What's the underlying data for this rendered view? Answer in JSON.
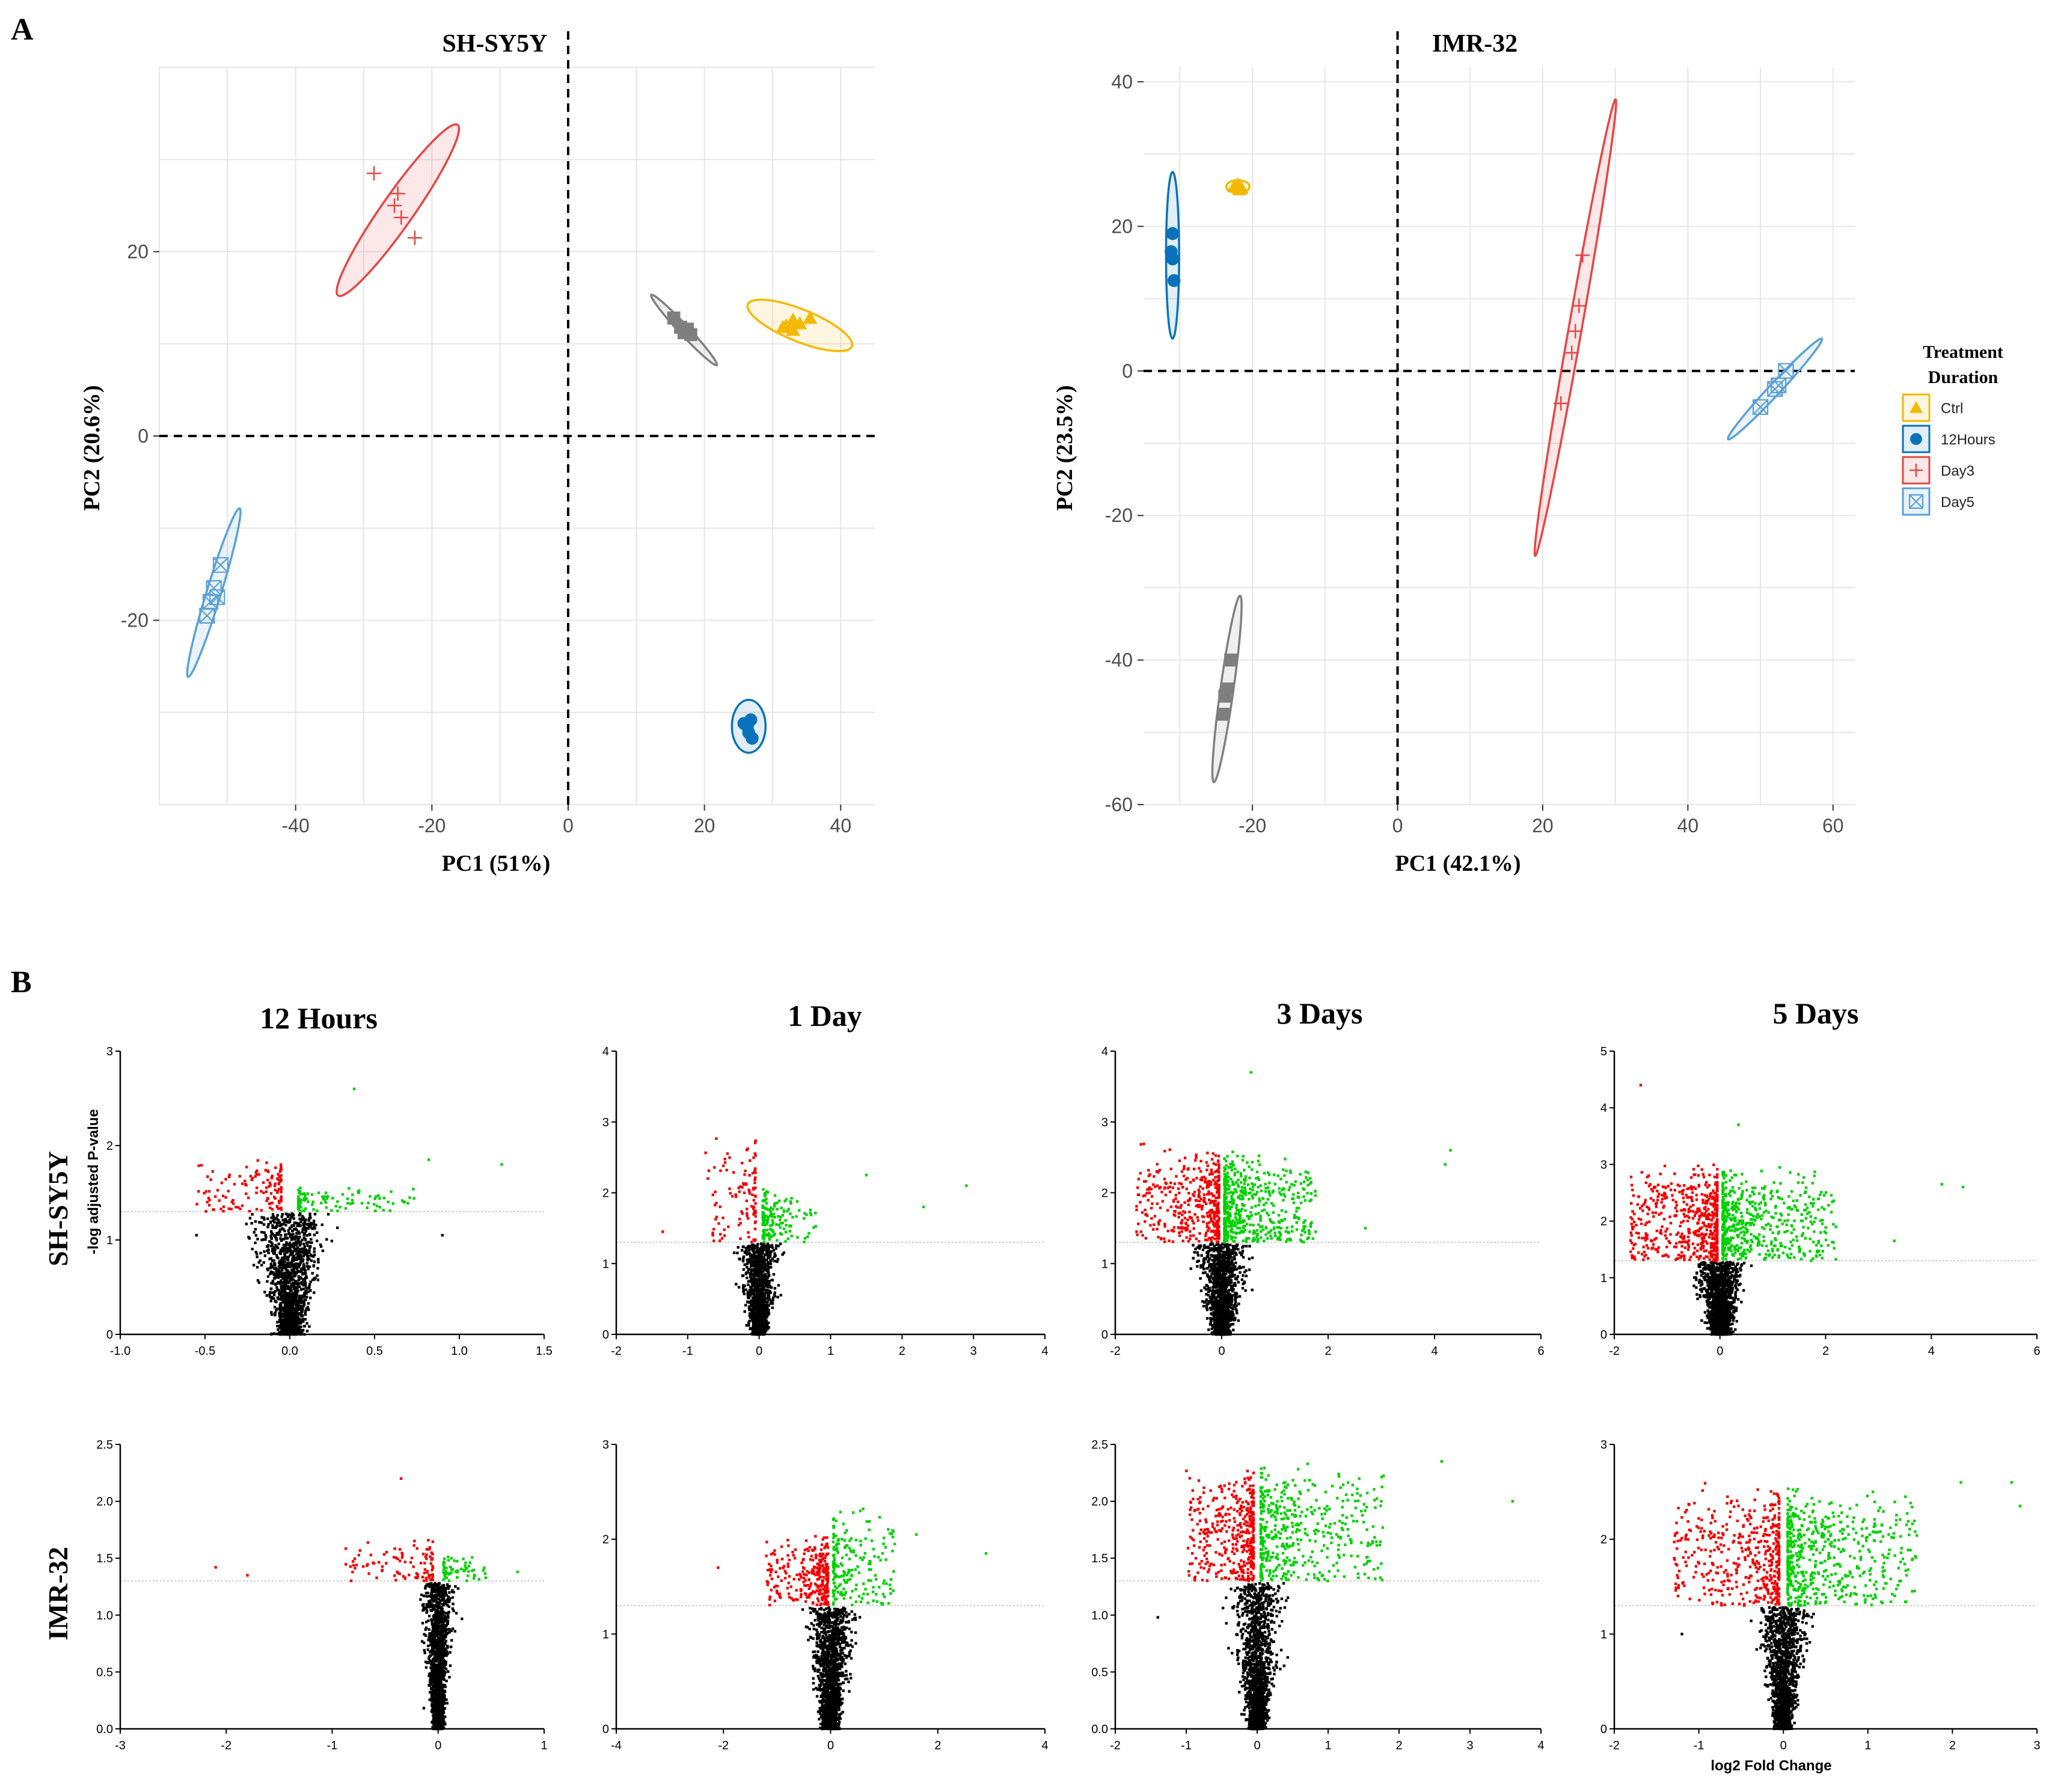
{
  "figure": {
    "panel_a_label": "A",
    "panel_b_label": "B"
  },
  "legend": {
    "title_line1": "Treatment",
    "title_line2": "Duration",
    "items": [
      {
        "label": "Ctrl",
        "color": "#F5B800",
        "shape": "triangle"
      },
      {
        "label": "12Hours",
        "color": "#0A72BA",
        "shape": "circle"
      },
      {
        "label": "Day3",
        "color": "#E84545",
        "shape": "plus"
      },
      {
        "label": "Day5",
        "color": "#5AA0D8",
        "shape": "boxx"
      }
    ]
  },
  "colors": {
    "up": "#00D100",
    "down": "#F20000",
    "ns": "#000000",
    "grid": "#E6E6E6",
    "unlabeled_group": "#7F7F7F"
  },
  "chart_data": [
    {
      "type": "scatter",
      "id": "pca-shsy5y",
      "title": "SH-SY5Y",
      "xlabel": "PC1 (51%)",
      "ylabel": "PC2 (20.6%)",
      "xlim": [
        -60,
        45
      ],
      "ylim": [
        -40,
        40
      ],
      "xticks": [
        -40,
        -20,
        0,
        20,
        40
      ],
      "yticks": [
        -20,
        0,
        20
      ],
      "groups": [
        {
          "name": "Ctrl",
          "ellipse": {
            "cx": 34,
            "cy": 12,
            "rx": 7,
            "ry": 2,
            "angle": 22
          },
          "points": [
            [
              32,
              12
            ],
            [
              33,
              11.5
            ],
            [
              34,
              12.2
            ],
            [
              35.5,
              12.8
            ],
            [
              31.5,
              11.8
            ],
            [
              33,
              12.6
            ]
          ]
        },
        {
          "name": "12Hours",
          "ellipse": {
            "cx": 26.5,
            "cy": -31.5,
            "rx": 2.1,
            "ry": 3.3,
            "angle": 0
          },
          "points": [
            [
              26.3,
              -31.5
            ],
            [
              26.5,
              -32.2
            ],
            [
              26.8,
              -30.8
            ],
            [
              27,
              -32.8
            ],
            [
              25.8,
              -31.2
            ]
          ]
        },
        {
          "name": "Day3",
          "ellipse": {
            "cx": -25,
            "cy": 24.5,
            "rx": 13,
            "ry": 2,
            "angle": -55
          },
          "points": [
            [
              -28.5,
              28.5
            ],
            [
              -25,
              26.3
            ],
            [
              -25.5,
              25
            ],
            [
              -24.5,
              23.7
            ],
            [
              -22.5,
              21.5
            ]
          ]
        },
        {
          "name": "Day5",
          "ellipse": {
            "cx": -52,
            "cy": -17,
            "rx": 11,
            "ry": 0.9,
            "angle": -73
          },
          "points": [
            [
              -53,
              -19.5
            ],
            [
              -52.5,
              -18
            ],
            [
              -52,
              -16.5
            ],
            [
              -51.5,
              -17.5
            ],
            [
              -51,
              -14
            ]
          ]
        },
        {
          "name": "unlabeled",
          "ellipse": {
            "cx": 17,
            "cy": 11.5,
            "rx": 6,
            "ry": 0.6,
            "angle": 47
          },
          "points": [
            [
              16.5,
              11.8
            ],
            [
              17,
              11.2
            ],
            [
              17.5,
              11.6
            ],
            [
              18,
              11.0
            ],
            [
              15.5,
              12.8
            ]
          ]
        }
      ],
      "reference_lines": {
        "x": 0,
        "y": 0
      }
    },
    {
      "type": "scatter",
      "id": "pca-imr32",
      "title": "IMR-32",
      "xlabel": "PC1 (42.1%)",
      "ylabel": "PC2 (23.5%)",
      "xlim": [
        -35,
        63
      ],
      "ylim": [
        -60,
        42
      ],
      "xticks": [
        -20,
        0,
        20,
        40,
        60
      ],
      "yticks": [
        -60,
        -40,
        -20,
        0,
        20,
        40
      ],
      "groups": [
        {
          "name": "Ctrl",
          "ellipse": {
            "cx": -22,
            "cy": 25.5,
            "rx": 1.6,
            "ry": 0.9,
            "angle": 0
          },
          "points": [
            [
              -22,
              25.8
            ],
            [
              -21.5,
              25.3
            ],
            [
              -22.5,
              25.5
            ],
            [
              -21.8,
              25.1
            ]
          ]
        },
        {
          "name": "12Hours",
          "ellipse": {
            "cx": -31,
            "cy": 16,
            "rx": 0.9,
            "ry": 11.5,
            "angle": 0
          },
          "points": [
            [
              -31,
              15.5
            ],
            [
              -31,
              19
            ],
            [
              -30.8,
              12.5
            ],
            [
              -31.2,
              16.5
            ]
          ]
        },
        {
          "name": "Day3",
          "ellipse": {
            "cx": 24.5,
            "cy": 6,
            "rx": 32,
            "ry": 0.9,
            "angle": -80
          },
          "points": [
            [
              24.5,
              5.5
            ],
            [
              24,
              2.5
            ],
            [
              25,
              9
            ],
            [
              25.5,
              16
            ],
            [
              22.5,
              -4.5
            ]
          ]
        },
        {
          "name": "Day5",
          "ellipse": {
            "cx": 52,
            "cy": -2.5,
            "rx": 9.5,
            "ry": 0.8,
            "angle": -47
          },
          "points": [
            [
              52,
              -2.5
            ],
            [
              52.5,
              -2
            ],
            [
              50,
              -5
            ],
            [
              53.5,
              0
            ]
          ]
        },
        {
          "name": "unlabeled",
          "ellipse": {
            "cx": -23.5,
            "cy": -44,
            "rx": 13,
            "ry": 0.9,
            "angle": -82
          },
          "points": [
            [
              -23.5,
              -44
            ],
            [
              -24,
              -47.5
            ],
            [
              -23,
              -40
            ],
            [
              -23.8,
              -45
            ]
          ]
        }
      ],
      "reference_lines": {
        "x": 0,
        "y": 0
      }
    },
    {
      "type": "scatter",
      "id": "volcano-shsy5y-12h",
      "column_title": "12 Hours",
      "row_label": "SH-SY5Y",
      "ylabel": "-log adjusted P-value",
      "xlabel": "",
      "xlim": [
        -1.0,
        1.5
      ],
      "ylim": [
        0,
        3
      ],
      "xticks": [
        "-1.0",
        "-0.5",
        "0.0",
        "0.5",
        "1.0",
        "1.5"
      ],
      "yticks": [
        "0",
        "1",
        "2",
        "3"
      ],
      "sig_threshold": 1.3,
      "spread": 0.09,
      "max_y_ns": 1.28,
      "n_ns": 1500,
      "n_sig_down": 130,
      "n_sig_up": 100,
      "down_x": [
        -0.55,
        -0.05
      ],
      "up_x": [
        0.05,
        0.75
      ],
      "cap": 1.88,
      "cap2": 1.6,
      "outliers": [
        [
          0.38,
          2.6
        ],
        [
          1.25,
          1.8
        ],
        [
          0.82,
          1.85
        ],
        [
          0.9,
          1.05
        ],
        [
          -0.55,
          1.05
        ]
      ]
    },
    {
      "type": "scatter",
      "id": "volcano-shsy5y-1d",
      "column_title": "1 Day",
      "row_label": "SH-SY5Y",
      "ylabel": "",
      "xlabel": "",
      "xlim": [
        -2,
        4
      ],
      "ylim": [
        0,
        4
      ],
      "xticks": [
        "-2",
        "-1",
        "0",
        "1",
        "2",
        "3",
        "4"
      ],
      "yticks": [
        "0",
        "1",
        "2",
        "3",
        "4"
      ],
      "sig_threshold": 1.3,
      "spread": 0.12,
      "max_y_ns": 1.28,
      "n_ns": 1400,
      "n_sig_down": 110,
      "n_sig_up": 150,
      "down_x": [
        -0.75,
        -0.05
      ],
      "up_x": [
        0.05,
        0.8
      ],
      "cap": 2.9,
      "cap2": 2.1,
      "outliers": [
        [
          2.9,
          2.1
        ],
        [
          2.3,
          1.8
        ],
        [
          1.5,
          2.25
        ],
        [
          -1.35,
          1.45
        ]
      ]
    },
    {
      "type": "scatter",
      "id": "volcano-shsy5y-3d",
      "column_title": "3 Days",
      "row_label": "SH-SY5Y",
      "ylabel": "",
      "xlabel": "",
      "xlim": [
        -2,
        6
      ],
      "ylim": [
        0,
        4
      ],
      "xticks": [
        "-2",
        "0",
        "2",
        "4",
        "6"
      ],
      "yticks": [
        "0",
        "1",
        "2",
        "3",
        "4"
      ],
      "sig_threshold": 1.3,
      "spread": 0.2,
      "max_y_ns": 1.28,
      "n_ns": 1500,
      "n_sig_down": 420,
      "n_sig_up": 520,
      "down_x": [
        -1.6,
        -0.05
      ],
      "up_x": [
        0.05,
        1.8
      ],
      "cap": 2.7,
      "cap2": 2.6,
      "outliers": [
        [
          4.3,
          2.6
        ],
        [
          4.2,
          2.4
        ],
        [
          2.7,
          1.5
        ],
        [
          0.55,
          3.7
        ],
        [
          -1.6,
          1.45
        ]
      ]
    },
    {
      "type": "scatter",
      "id": "volcano-shsy5y-5d",
      "column_title": "5 Days",
      "row_label": "SH-SY5Y",
      "ylabel": "",
      "xlabel": "",
      "xlim": [
        -2,
        6
      ],
      "ylim": [
        0,
        5
      ],
      "xticks": [
        "-2",
        "0",
        "2",
        "4",
        "6"
      ],
      "yticks": [
        "0",
        "1",
        "2",
        "3",
        "4",
        "5"
      ],
      "sig_threshold": 1.3,
      "spread": 0.2,
      "max_y_ns": 1.28,
      "n_ns": 1500,
      "n_sig_down": 520,
      "n_sig_up": 560,
      "down_x": [
        -1.7,
        -0.05
      ],
      "up_x": [
        0.05,
        2.2
      ],
      "cap": 3.05,
      "cap2": 3.0,
      "outliers": [
        [
          -1.5,
          4.4
        ],
        [
          4.6,
          2.6
        ],
        [
          4.2,
          2.65
        ],
        [
          3.3,
          1.65
        ],
        [
          0.35,
          3.7
        ]
      ]
    },
    {
      "type": "scatter",
      "id": "volcano-imr32-12h",
      "column_title": "12 Hours",
      "row_label": "IMR-32",
      "ylabel": "",
      "xlabel": "",
      "xlim": [
        -3,
        1
      ],
      "ylim": [
        0,
        2.5
      ],
      "xticks": [
        "-3",
        "-2",
        "-1",
        "0",
        "1"
      ],
      "yticks": [
        "0.0",
        "0.5",
        "1.0",
        "1.5",
        "2.0",
        "2.5"
      ],
      "sig_threshold": 1.3,
      "spread": 0.06,
      "max_y_ns": 1.28,
      "n_ns": 1700,
      "n_sig_down": 100,
      "n_sig_up": 60,
      "down_x": [
        -0.9,
        -0.05
      ],
      "up_x": [
        0.05,
        0.45
      ],
      "cap": 1.68,
      "cap2": 1.55,
      "outliers": [
        [
          -2.1,
          1.42
        ],
        [
          -1.8,
          1.35
        ],
        [
          0.75,
          1.38
        ],
        [
          -0.35,
          2.2
        ]
      ]
    },
    {
      "type": "scatter",
      "id": "volcano-imr32-1d",
      "column_title": "1 Day",
      "row_label": "IMR-32",
      "ylabel": "",
      "xlabel": "",
      "xlim": [
        -4,
        4
      ],
      "ylim": [
        0,
        3
      ],
      "xticks": [
        "-4",
        "-2",
        "0",
        "2",
        "4"
      ],
      "yticks": [
        "0",
        "1",
        "2",
        "3"
      ],
      "sig_threshold": 1.3,
      "spread": 0.18,
      "max_y_ns": 1.28,
      "n_ns": 1600,
      "n_sig_down": 300,
      "n_sig_up": 200,
      "down_x": [
        -1.2,
        -0.05
      ],
      "up_x": [
        0.05,
        1.2
      ],
      "cap": 2.05,
      "cap2": 2.4,
      "outliers": [
        [
          2.9,
          1.85
        ],
        [
          -2.1,
          1.7
        ],
        [
          1.6,
          2.05
        ]
      ]
    },
    {
      "type": "scatter",
      "id": "volcano-imr32-3d",
      "column_title": "3 Days",
      "row_label": "IMR-32",
      "ylabel": "",
      "xlabel": "",
      "xlim": [
        -2,
        4
      ],
      "ylim": [
        0,
        2.5
      ],
      "xticks": [
        "-2",
        "-1",
        "0",
        "1",
        "2",
        "3",
        "4"
      ],
      "yticks": [
        "0.0",
        "0.5",
        "1.0",
        "1.5",
        "2.0",
        "2.5"
      ],
      "sig_threshold": 1.3,
      "spread": 0.15,
      "max_y_ns": 1.28,
      "n_ns": 1600,
      "n_sig_down": 400,
      "n_sig_up": 450,
      "down_x": [
        -1.0,
        -0.05
      ],
      "up_x": [
        0.05,
        1.8
      ],
      "cap": 2.35,
      "cap2": 2.35,
      "outliers": [
        [
          3.6,
          2.0
        ],
        [
          2.6,
          2.35
        ],
        [
          -1.4,
          0.98
        ]
      ]
    },
    {
      "type": "scatter",
      "id": "volcano-imr32-5d",
      "column_title": "5 Days",
      "row_label": "IMR-32",
      "ylabel": "",
      "xlabel": "log2 Fold Change",
      "xlim": [
        -2,
        3
      ],
      "ylim": [
        0,
        3
      ],
      "xticks": [
        "-2",
        "-1",
        "0",
        "1",
        "2",
        "3"
      ],
      "yticks": [
        "0",
        "1",
        "2",
        "3"
      ],
      "sig_threshold": 1.3,
      "spread": 0.12,
      "max_y_ns": 1.28,
      "n_ns": 1600,
      "n_sig_down": 450,
      "n_sig_up": 550,
      "down_x": [
        -1.3,
        -0.05
      ],
      "up_x": [
        0.05,
        1.6
      ],
      "cap": 2.6,
      "cap2": 2.6,
      "outliers": [
        [
          2.7,
          2.6
        ],
        [
          2.8,
          2.35
        ],
        [
          2.1,
          2.6
        ],
        [
          -1.2,
          1.0
        ]
      ]
    }
  ]
}
